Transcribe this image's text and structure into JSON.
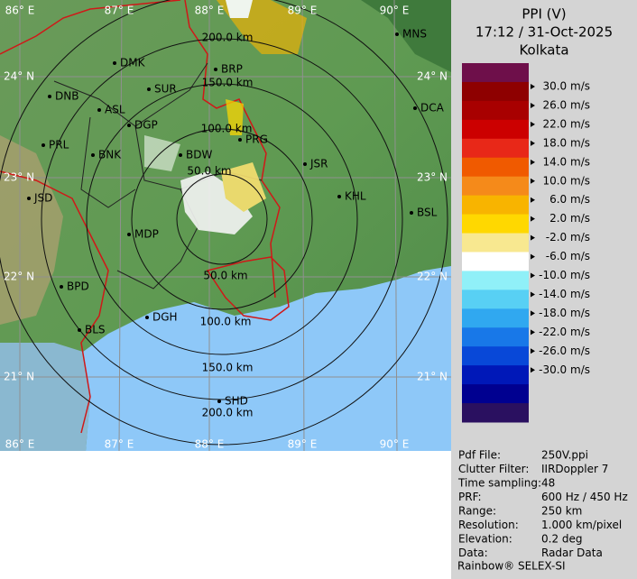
{
  "header": {
    "title": "PPI (V)",
    "time": "17:12 / 31-Oct-2025",
    "station": "Kolkata"
  },
  "legend": {
    "colors": [
      "#6e0f4a",
      "#8e0000",
      "#a80000",
      "#cc0000",
      "#e82818",
      "#f05a00",
      "#f58a1a",
      "#f8b400",
      "#ffd800",
      "#f8e890",
      "#ffffff",
      "#90f0f8",
      "#58d0f4",
      "#30a8f0",
      "#1878e8",
      "#0848d8",
      "#0018b8",
      "#000090",
      "#2a1060"
    ],
    "labels": [
      "30.0 m/s",
      "26.0 m/s",
      "22.0 m/s",
      "18.0 m/s",
      "14.0 m/s",
      "10.0 m/s",
      "6.0 m/s",
      "2.0 m/s",
      "-2.0 m/s",
      "-6.0 m/s",
      "-10.0 m/s",
      "-14.0 m/s",
      "-18.0 m/s",
      "-22.0 m/s",
      "-26.0 m/s",
      "-30.0 m/s"
    ]
  },
  "map": {
    "rings": [
      "50.0 km",
      "100.0 km",
      "150.0 km",
      "200.0 km"
    ],
    "cities": [
      "MNS",
      "DMK",
      "BRP",
      "DNB",
      "SUR",
      "ASL",
      "DCA",
      "PRL",
      "DGP",
      "BNK",
      "PRG",
      "BDW",
      "JSR",
      "JSD",
      "KHL",
      "BSL",
      "MDP",
      "DGH",
      "BPD",
      "BLS",
      "SHD"
    ],
    "longitudes": [
      "86° E",
      "87° E",
      "88° E",
      "89° E",
      "90° E"
    ],
    "latitudes": [
      "24° N",
      "23° N",
      "22° N",
      "21° N"
    ]
  },
  "info": [
    [
      "Pdf File:",
      "250V.ppi"
    ],
    [
      "Clutter Filter:",
      "IIRDoppler 7"
    ],
    [
      "Time sampling:",
      "48"
    ],
    [
      "PRF:",
      "600 Hz / 450 Hz"
    ],
    [
      "Range:",
      "250 km"
    ],
    [
      "Resolution:",
      "1.000 km/pixel"
    ],
    [
      "Elevation:",
      "0.2 deg"
    ],
    [
      "Data:",
      "Radar Data"
    ]
  ],
  "footer": "Rainbow® SELEX-SI"
}
